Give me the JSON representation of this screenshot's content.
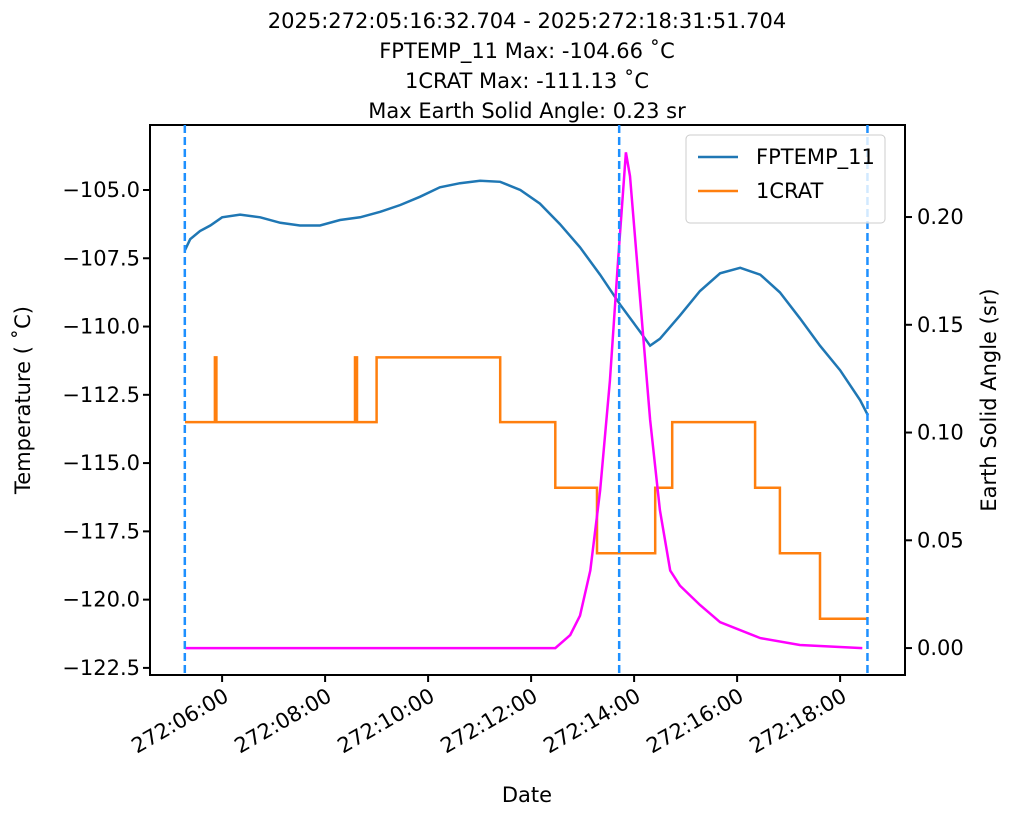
{
  "chart_data": {
    "type": "line",
    "title_lines": [
      "2025:272:05:16:32.704 - 2025:272:18:31:51.704",
      "FPTEMP_11 Max: -104.66 ˚C",
      "1CRAT Max: -111.13 ˚C",
      "Max Earth Solid Angle: 0.23 sr"
    ],
    "xlabel": "Date",
    "ylabel": "Temperature ( ˚C)",
    "y2label": "Earth Solid Angle (sr)",
    "xlim": [
      4.6,
      19.26
    ],
    "ylim": [
      -122.76,
      -102.62
    ],
    "y2lim": [
      -0.0125,
      0.2427
    ],
    "xticks": [
      {
        "value": 6,
        "label": "272:06:00"
      },
      {
        "value": 8,
        "label": "272:08:00"
      },
      {
        "value": 10,
        "label": "272:10:00"
      },
      {
        "value": 12,
        "label": "272:12:00"
      },
      {
        "value": 14,
        "label": "272:14:00"
      },
      {
        "value": 16,
        "label": "272:16:00"
      },
      {
        "value": 18,
        "label": "272:18:00"
      }
    ],
    "yticks": [
      {
        "value": -105,
        "label": "−105.0"
      },
      {
        "value": -107.5,
        "label": "−107.5"
      },
      {
        "value": -110,
        "label": "−110.0"
      },
      {
        "value": -112.5,
        "label": "−112.5"
      },
      {
        "value": -115,
        "label": "−115.0"
      },
      {
        "value": -117.5,
        "label": "−117.5"
      },
      {
        "value": -120,
        "label": "−120.0"
      },
      {
        "value": -122.5,
        "label": "−122.5"
      }
    ],
    "y2ticks": [
      {
        "value": 0,
        "label": "0.00"
      },
      {
        "value": 0.05,
        "label": "0.05"
      },
      {
        "value": 0.1,
        "label": "0.10"
      },
      {
        "value": 0.15,
        "label": "0.15"
      },
      {
        "value": 0.2,
        "label": "0.20"
      }
    ],
    "vlines": [
      5.276,
      13.71,
      18.531
    ],
    "vline_color": "#1e90ff",
    "legend": "upper right",
    "series": [
      {
        "name": "FPTEMP_11",
        "color": "#1f77b4",
        "x": [
          5.28,
          5.38,
          5.57,
          5.77,
          6.0,
          6.35,
          6.74,
          7.13,
          7.51,
          7.9,
          8.29,
          8.68,
          9.07,
          9.46,
          9.84,
          10.23,
          10.62,
          11.01,
          11.4,
          11.79,
          12.17,
          12.56,
          12.95,
          13.34,
          13.73,
          14.12,
          14.31,
          14.5,
          14.89,
          15.28,
          15.67,
          16.06,
          16.45,
          16.83,
          17.22,
          17.61,
          18.0,
          18.39,
          18.54
        ],
        "values": [
          -107.2,
          -106.8,
          -106.5,
          -106.3,
          -106.0,
          -105.9,
          -106.0,
          -106.2,
          -106.3,
          -106.3,
          -106.1,
          -106.0,
          -105.8,
          -105.55,
          -105.25,
          -104.9,
          -104.75,
          -104.66,
          -104.7,
          -105.0,
          -105.5,
          -106.25,
          -107.1,
          -108.1,
          -109.2,
          -110.2,
          -110.7,
          -110.45,
          -109.6,
          -108.7,
          -108.05,
          -107.85,
          -108.1,
          -108.75,
          -109.7,
          -110.7,
          -111.6,
          -112.7,
          -113.25
        ]
      },
      {
        "name": "1CRAT",
        "color": "#ff7f0e",
        "x": [
          5.28,
          5.86,
          5.86,
          5.89,
          5.89,
          8.58,
          8.58,
          8.62,
          8.62,
          9.0,
          9.0,
          11.4,
          11.4,
          12.47,
          12.47,
          13.28,
          13.28,
          14.41,
          14.41,
          14.74,
          14.74,
          16.35,
          16.35,
          16.83,
          16.83,
          17.61,
          17.61,
          18.54
        ],
        "values": [
          -113.5,
          -113.5,
          -111.13,
          -111.13,
          -113.5,
          -113.5,
          -111.13,
          -111.13,
          -113.5,
          -113.5,
          -111.13,
          -111.13,
          -113.5,
          -113.5,
          -115.9,
          -115.9,
          -118.3,
          -118.3,
          -115.9,
          -115.9,
          -113.5,
          -113.5,
          -115.9,
          -115.9,
          -118.3,
          -118.3,
          -120.7,
          -120.7
        ]
      },
      {
        "color": "#ff00ff",
        "axis": "y2",
        "x": [
          5.28,
          12.47,
          12.76,
          12.95,
          13.15,
          13.34,
          13.53,
          13.69,
          13.84,
          13.92,
          14.12,
          14.31,
          14.5,
          14.7,
          14.89,
          15.28,
          15.67,
          16.45,
          17.22,
          18.43
        ],
        "values": [
          0,
          0,
          0.006,
          0.015,
          0.036,
          0.073,
          0.124,
          0.18,
          0.23,
          0.219,
          0.161,
          0.106,
          0.064,
          0.036,
          0.029,
          0.02,
          0.012,
          0.0046,
          0.0014,
          0
        ]
      }
    ]
  }
}
